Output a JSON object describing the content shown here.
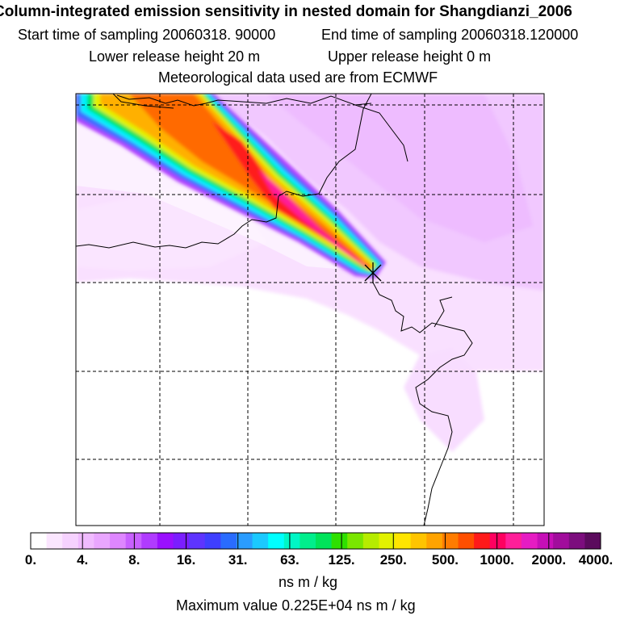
{
  "header": {
    "title": "Column-integrated emission sensitivity in nested domain for Shangdianzi_2006",
    "start_time": "Start time of sampling 20060318. 90000",
    "end_time": "End time of sampling 20060318.120000",
    "lower_release": "Lower release height   20 m",
    "upper_release": "Upper release height    0 m",
    "met_source": "Meteorological data used are from ECMWF"
  },
  "legend": {
    "tick_labels": [
      "0.",
      "4.",
      "8.",
      "16.",
      "31.",
      "63.",
      "125.",
      "250.",
      "500.",
      "1000.",
      "2000.",
      "4000."
    ],
    "colors": [
      "#ffffff",
      "#fbe6ff",
      "#f6d2ff",
      "#f0bbff",
      "#e9a6ff",
      "#de86ff",
      "#c860ff",
      "#b03bff",
      "#9a10ff",
      "#7b1eff",
      "#5e34ff",
      "#3f3fff",
      "#2a6cff",
      "#2a9cff",
      "#1bc9ff",
      "#00ffff",
      "#00f6c6",
      "#00ee8c",
      "#00e35a",
      "#2ee000",
      "#7ae600",
      "#b6ec00",
      "#e2f200",
      "#ffe500",
      "#ffc400",
      "#ffa300",
      "#ff7c00",
      "#ff4f00",
      "#ff1a1a",
      "#ff0060",
      "#ff1f99",
      "#e61cc3",
      "#c60fb7",
      "#a10d9c",
      "#7c0e7e",
      "#5b0b5d"
    ],
    "units": "ns m / kg",
    "max_value": "Maximum value  0.225E+04 ns m / kg"
  },
  "map": {
    "receptor_marker": "Shangdianzi receptor (x)"
  }
}
